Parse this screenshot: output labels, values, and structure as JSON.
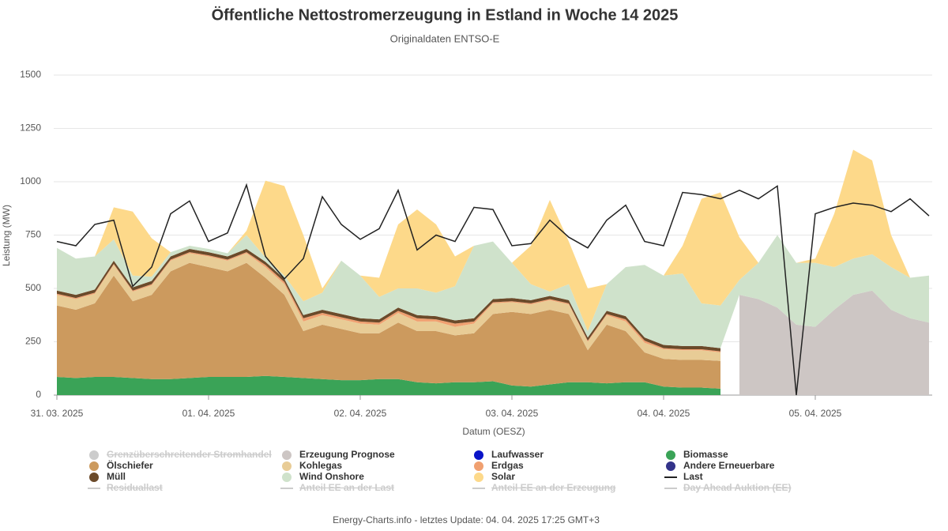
{
  "chart_data": {
    "type": "area",
    "stacked": true,
    "title": "Öffentliche Nettostromerzeugung in Estland in Woche 14 2025",
    "subtitle": "Originaldaten ENTSO-E",
    "y_label": "Leistung (MW)",
    "x_label": "Datum (OESZ)",
    "footer": "Energy-Charts.info - letztes Update: 04. 04. 2025 17:25 GMT+3",
    "ylim": [
      0,
      1500
    ],
    "yticks": [
      0,
      250,
      500,
      750,
      1000,
      1250,
      1500
    ],
    "xlim": [
      0,
      138.5
    ],
    "xticks": [
      {
        "value": 0,
        "label": "31. 03. 2025"
      },
      {
        "value": 24,
        "label": "01. 04. 2025"
      },
      {
        "value": 48,
        "label": "02. 04. 2025"
      },
      {
        "value": 72,
        "label": "03. 04. 2025"
      },
      {
        "value": 96,
        "label": "04. 04. 2025"
      },
      {
        "value": 120,
        "label": "05. 04. 2025"
      }
    ],
    "grid": true,
    "x": [
      0,
      3,
      6,
      9,
      12,
      15,
      18,
      21,
      24,
      27,
      30,
      33,
      36,
      39,
      42,
      45,
      48,
      51,
      54,
      57,
      60,
      63,
      66,
      69,
      72,
      75,
      78,
      81,
      84,
      87,
      90,
      93,
      96,
      99,
      102,
      105,
      108,
      111,
      114,
      117,
      120,
      123,
      126,
      129,
      132,
      135,
      138
    ],
    "series": [
      {
        "name": "Grenzüberschreitender Stromhandel",
        "color": "#bbbbbb",
        "kind": "area",
        "visible": false
      },
      {
        "name": "Erzeugung Prognose",
        "color": "#cdc6c4",
        "kind": "area",
        "values": [
          null,
          null,
          null,
          null,
          null,
          null,
          null,
          null,
          null,
          null,
          null,
          null,
          null,
          null,
          null,
          null,
          null,
          null,
          null,
          null,
          null,
          null,
          null,
          null,
          null,
          null,
          null,
          null,
          null,
          null,
          null,
          null,
          null,
          null,
          null,
          null,
          470,
          450,
          410,
          330,
          320,
          400,
          470,
          490,
          400,
          360,
          340
        ]
      },
      {
        "name": "Laufwasser",
        "color": "#0a14c8",
        "kind": "area"
      },
      {
        "name": "Biomasse",
        "color": "#3aa357",
        "kind": "area",
        "values": [
          85,
          80,
          85,
          85,
          80,
          75,
          75,
          80,
          85,
          85,
          85,
          90,
          85,
          80,
          75,
          70,
          70,
          75,
          75,
          60,
          55,
          60,
          60,
          65,
          45,
          40,
          50,
          60,
          60,
          55,
          60,
          60,
          40,
          35,
          35,
          30,
          null,
          null,
          null,
          null,
          null,
          null,
          null,
          null,
          null,
          null,
          null
        ]
      },
      {
        "name": "Ölschiefer",
        "color": "#cc9a5e",
        "kind": "area",
        "values": [
          335,
          320,
          345,
          475,
          360,
          395,
          505,
          540,
          515,
          495,
          535,
          460,
          385,
          220,
          255,
          240,
          220,
          215,
          265,
          240,
          245,
          220,
          230,
          315,
          345,
          340,
          350,
          320,
          150,
          275,
          240,
          140,
          130,
          130,
          130,
          130,
          null,
          null,
          null,
          null,
          null,
          null,
          null,
          null,
          null,
          null,
          null
        ]
      },
      {
        "name": "Kohlegas",
        "color": "#e8cc96",
        "kind": "area",
        "values": [
          50,
          50,
          45,
          50,
          45,
          45,
          50,
          45,
          50,
          50,
          45,
          50,
          50,
          45,
          45,
          45,
          45,
          40,
          45,
          45,
          45,
          40,
          45,
          50,
          45,
          45,
          45,
          45,
          40,
          45,
          45,
          45,
          45,
          45,
          45,
          40,
          null,
          null,
          null,
          null,
          null,
          null,
          null,
          null,
          null,
          null,
          null
        ]
      },
      {
        "name": "Erdgas",
        "color": "#f0a070",
        "kind": "area",
        "values": [
          5,
          5,
          5,
          5,
          5,
          5,
          5,
          5,
          5,
          5,
          5,
          10,
          10,
          15,
          10,
          10,
          10,
          10,
          10,
          15,
          10,
          15,
          10,
          5,
          5,
          5,
          5,
          5,
          5,
          5,
          10,
          10,
          5,
          5,
          5,
          5,
          null,
          null,
          null,
          null,
          null,
          null,
          null,
          null,
          null,
          null,
          null
        ]
      },
      {
        "name": "Andere Erneuerbare",
        "color": "#33338a",
        "kind": "area"
      },
      {
        "name": "Müll",
        "color": "#6b4a2a",
        "kind": "area",
        "values": [
          15,
          15,
          15,
          15,
          15,
          15,
          15,
          15,
          15,
          15,
          15,
          15,
          15,
          15,
          15,
          15,
          15,
          15,
          15,
          15,
          15,
          15,
          15,
          15,
          15,
          15,
          15,
          15,
          15,
          15,
          15,
          15,
          15,
          15,
          15,
          15,
          null,
          null,
          null,
          null,
          null,
          null,
          null,
          null,
          null,
          null,
          null
        ]
      },
      {
        "name": "Wind Onshore",
        "color": "#cfe2cb",
        "kind": "area",
        "values": [
          200,
          170,
          155,
          100,
          55,
          20,
          20,
          15,
          15,
          15,
          65,
          20,
          15,
          65,
          80,
          250,
          200,
          105,
          90,
          125,
          110,
          160,
          340,
          270,
          165,
          75,
          20,
          75,
          30,
          125,
          230,
          340,
          325,
          340,
          200,
          200,
          70,
          170,
          340,
          290,
          300,
          200,
          170,
          170,
          200,
          190,
          220
        ]
      },
      {
        "name": "Solar",
        "color": "#fdd98a",
        "kind": "area",
        "values": [
          0,
          0,
          0,
          150,
          300,
          180,
          0,
          0,
          0,
          0,
          20,
          360,
          420,
          310,
          20,
          0,
          0,
          90,
          300,
          370,
          320,
          140,
          0,
          0,
          0,
          180,
          430,
          200,
          200,
          0,
          0,
          0,
          0,
          130,
          490,
          530,
          200,
          0,
          0,
          0,
          20,
          250,
          510,
          440,
          150,
          0,
          0
        ]
      },
      {
        "name": "Last",
        "color": "#222222",
        "kind": "line",
        "values": [
          720,
          700,
          800,
          820,
          510,
          600,
          850,
          910,
          720,
          760,
          985,
          650,
          545,
          640,
          930,
          800,
          730,
          780,
          960,
          680,
          750,
          720,
          880,
          870,
          700,
          710,
          820,
          740,
          690,
          820,
          890,
          720,
          700,
          950,
          940,
          920,
          960,
          920,
          980,
          0,
          850,
          880,
          900,
          890,
          860,
          920,
          840
        ]
      },
      {
        "name": "Residuallast",
        "color": "#bbbbbb",
        "kind": "line",
        "visible": false
      },
      {
        "name": "Anteil EE an der Last",
        "color": "#bbbbbb",
        "kind": "line",
        "visible": false
      },
      {
        "name": "Anteil EE an der Erzeugung",
        "color": "#bbbbbb",
        "kind": "line",
        "visible": false
      },
      {
        "name": "Day Ahead Auktion (EE)",
        "color": "#bbbbbb",
        "kind": "line",
        "visible": false
      }
    ]
  }
}
